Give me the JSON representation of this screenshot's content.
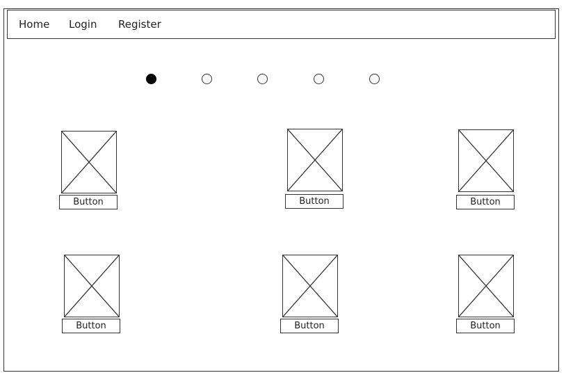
{
  "nav": {
    "items": [
      {
        "label": "Home"
      },
      {
        "label": "Login"
      },
      {
        "label": "Register"
      }
    ]
  },
  "carousel": {
    "dot_count": 5,
    "active_index": 0
  },
  "cards": [
    {
      "button_label": "Button"
    },
    {
      "button_label": "Button"
    },
    {
      "button_label": "Button"
    },
    {
      "button_label": "Button"
    },
    {
      "button_label": "Button"
    },
    {
      "button_label": "Button"
    }
  ]
}
